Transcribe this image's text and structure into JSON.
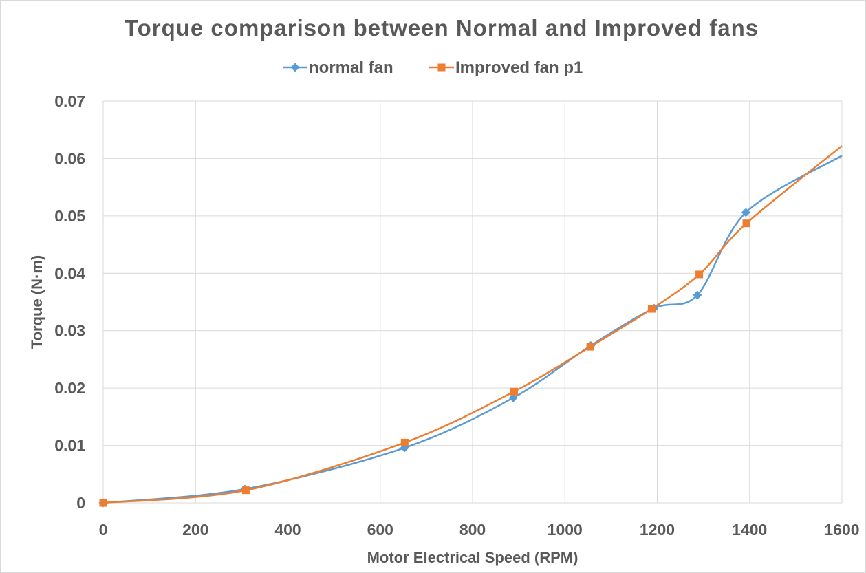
{
  "chart_data": {
    "type": "line",
    "smooth": true,
    "title": "Torque comparison between Normal and Improved fans",
    "xlabel": "Motor Electrical Speed (RPM)",
    "ylabel": "Torque (N·m)",
    "xlim": [
      0,
      1600
    ],
    "ylim": [
      0,
      0.07
    ],
    "x_ticks": [
      0,
      200,
      400,
      600,
      800,
      1000,
      1200,
      1400,
      1600
    ],
    "x_tick_labels": [
      "0",
      "200",
      "400",
      "600",
      "800",
      "1000",
      "1200",
      "1400",
      "1600"
    ],
    "y_ticks": [
      0,
      0.01,
      0.02,
      0.03,
      0.04,
      0.05,
      0.06,
      0.07
    ],
    "y_tick_labels": [
      "0",
      "0.01",
      "0.02",
      "0.03",
      "0.04",
      "0.05",
      "0.06",
      "0.07"
    ],
    "grid": true,
    "legend_position": "top-center",
    "series": [
      {
        "name": "normal fan",
        "color": "#5b9bd5",
        "marker": "diamond",
        "points": [
          [
            0,
            0.0
          ],
          [
            307,
            0.0024
          ],
          [
            653,
            0.0096
          ],
          [
            888,
            0.0183
          ],
          [
            1056,
            0.0274
          ],
          [
            1193,
            0.0339
          ],
          [
            1287,
            0.0362
          ],
          [
            1392,
            0.0506
          ],
          [
            1600,
            0.0605
          ]
        ]
      },
      {
        "name": "Improved fan p1",
        "color": "#ed7d31",
        "marker": "square",
        "points": [
          [
            0,
            0.0
          ],
          [
            309,
            0.0022
          ],
          [
            653,
            0.0105
          ],
          [
            890,
            0.0194
          ],
          [
            1055,
            0.0272
          ],
          [
            1188,
            0.0338
          ],
          [
            1291,
            0.0398
          ],
          [
            1393,
            0.0487
          ],
          [
            1600,
            0.0622
          ]
        ]
      }
    ]
  }
}
